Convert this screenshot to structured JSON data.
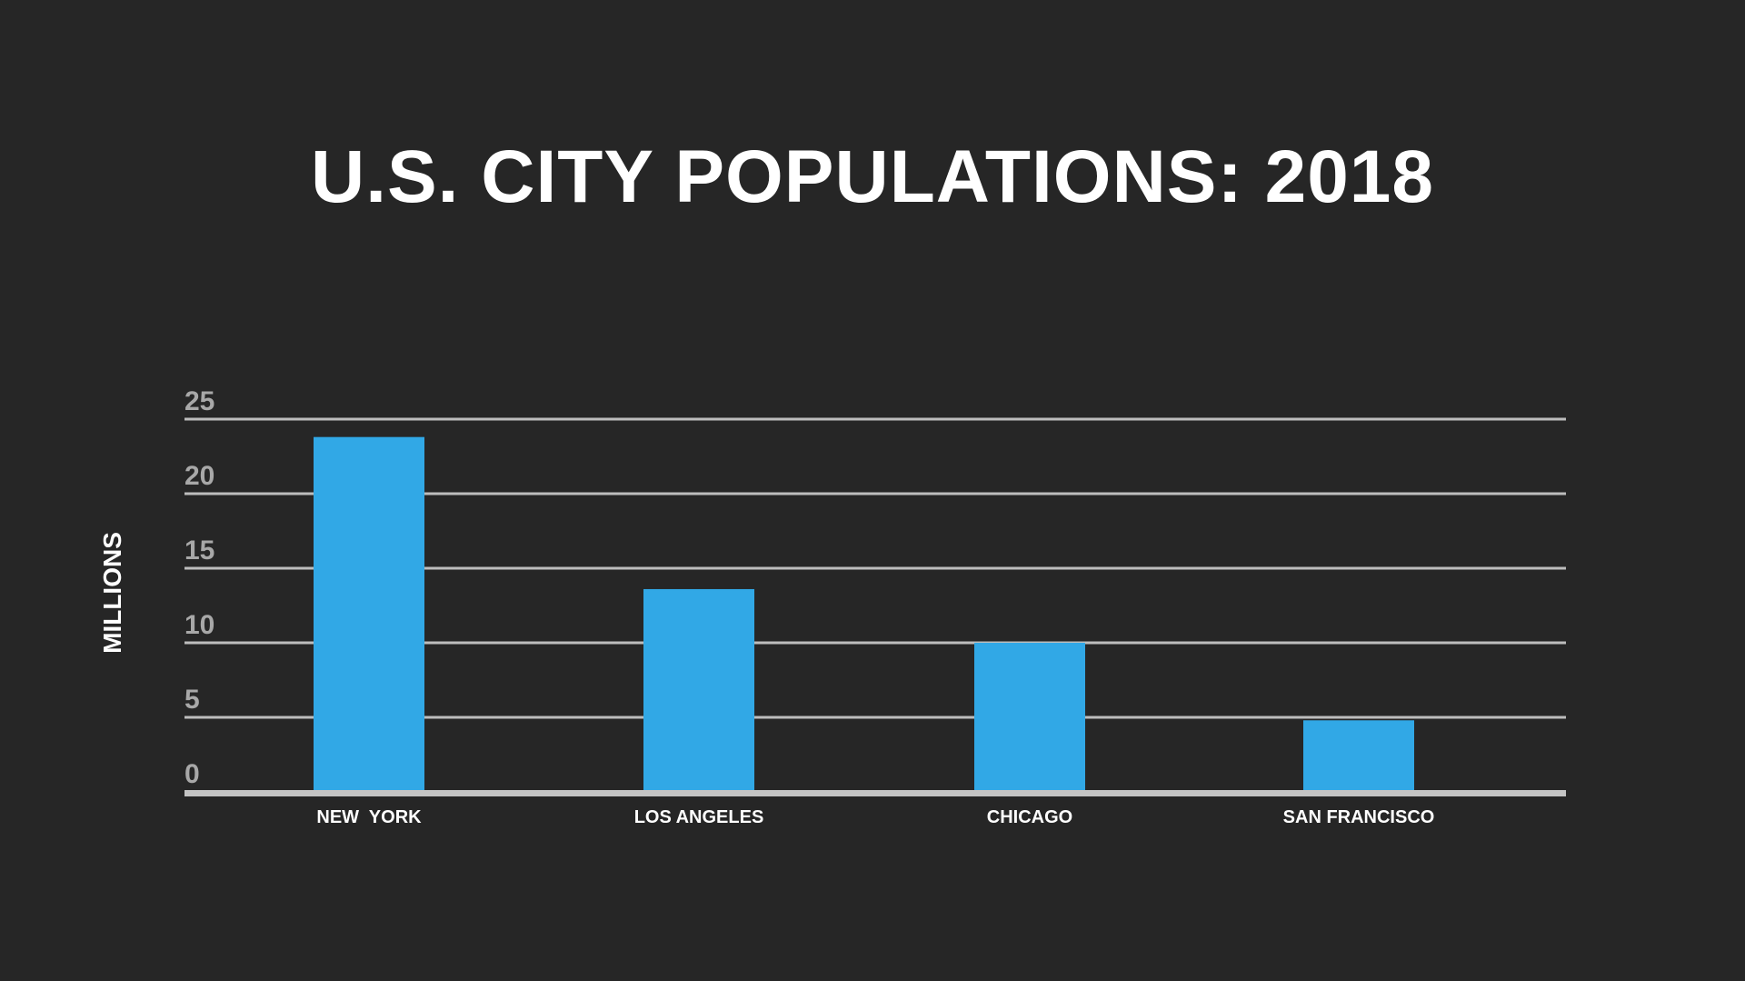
{
  "chart_data": {
    "type": "bar",
    "title": "U.S. CITY POPULATIONS:  2018",
    "xlabel": "",
    "ylabel": "MILLIONS",
    "categories": [
      "NEW  YORK",
      "LOS ANGELES",
      "CHICAGO",
      "SAN FRANCISCO"
    ],
    "values": [
      23.8,
      13.6,
      10.0,
      4.8
    ],
    "ylim": [
      0,
      25
    ],
    "yticks": [
      0,
      5,
      10,
      15,
      20,
      25
    ],
    "ytick_labels": [
      "0",
      "5",
      "10",
      "15",
      "20",
      "25"
    ],
    "grid": true,
    "legend": "none"
  },
  "colors": {
    "background": "#262626",
    "bar": "#31a8e6",
    "gridline": "#bdbdbd",
    "baseline": "#c4c4c4",
    "tick_label": "#a8a8a8",
    "text": "#ffffff"
  }
}
